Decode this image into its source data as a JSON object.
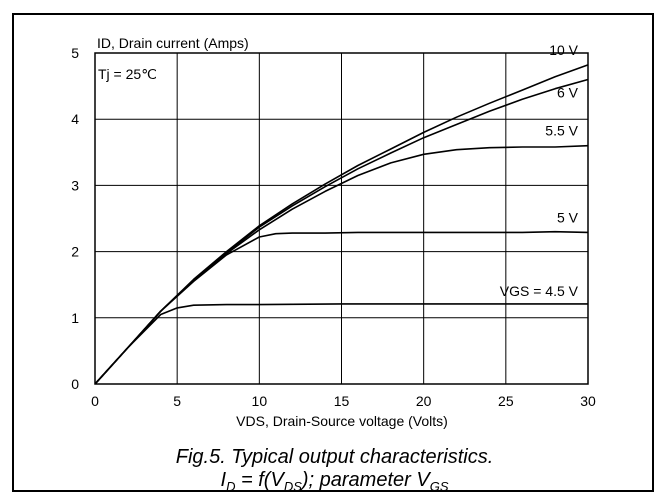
{
  "chart_data": {
    "type": "line",
    "title": "",
    "xlabel": "VDS, Drain-Source voltage (Volts)",
    "ylabel": "ID, Drain current (Amps)",
    "xlim": [
      0,
      30
    ],
    "ylim": [
      0,
      5
    ],
    "xticks": [
      0,
      5,
      10,
      15,
      20,
      25,
      30
    ],
    "yticks": [
      0,
      1,
      2,
      3,
      4,
      5
    ],
    "grid": true,
    "annotation": "Tj = 25℃",
    "series": [
      {
        "name": "10 V",
        "x": [
          0,
          2,
          4,
          6,
          8,
          10,
          12,
          14,
          16,
          18,
          20,
          22,
          24,
          26,
          28,
          30
        ],
        "y": [
          0,
          0.55,
          1.1,
          1.58,
          2.0,
          2.39,
          2.72,
          3.02,
          3.3,
          3.55,
          3.8,
          4.03,
          4.24,
          4.44,
          4.64,
          4.82
        ]
      },
      {
        "name": "6 V",
        "x": [
          0,
          2,
          4,
          6,
          8,
          10,
          12,
          14,
          16,
          18,
          20,
          22,
          24,
          26,
          28,
          30
        ],
        "y": [
          0,
          0.55,
          1.1,
          1.57,
          1.98,
          2.37,
          2.69,
          2.98,
          3.25,
          3.49,
          3.72,
          3.92,
          4.12,
          4.3,
          4.46,
          4.6
        ]
      },
      {
        "name": "5.5 V",
        "x": [
          0,
          2,
          4,
          6,
          8,
          10,
          12,
          14,
          16,
          18,
          20,
          22,
          24,
          26,
          28,
          30
        ],
        "y": [
          0,
          0.55,
          1.1,
          1.56,
          1.97,
          2.33,
          2.64,
          2.91,
          3.15,
          3.34,
          3.47,
          3.54,
          3.57,
          3.58,
          3.58,
          3.6
        ]
      },
      {
        "name": "5 V",
        "x": [
          0,
          2,
          4,
          6,
          8,
          10,
          11,
          12,
          14,
          16,
          18,
          20,
          22,
          24,
          26,
          28,
          30
        ],
        "y": [
          0,
          0.55,
          1.1,
          1.55,
          1.95,
          2.22,
          2.27,
          2.28,
          2.28,
          2.29,
          2.29,
          2.29,
          2.29,
          2.29,
          2.29,
          2.3,
          2.29
        ]
      },
      {
        "name": "VGS = 4.5 V",
        "x": [
          0,
          2,
          4,
          5,
          6,
          8,
          10,
          15,
          20,
          25,
          30
        ],
        "y": [
          0,
          0.55,
          1.05,
          1.15,
          1.19,
          1.2,
          1.2,
          1.21,
          1.21,
          1.21,
          1.21
        ]
      }
    ]
  },
  "caption": {
    "line1": "Fig.5.  Typical output characteristics.",
    "line2_I": "I",
    "line2_I_sub": "D",
    "line2_mid": " = f(V",
    "line2_V_sub": "DS",
    "line2_end": "); parameter V",
    "line2_V2_sub": "GS"
  }
}
